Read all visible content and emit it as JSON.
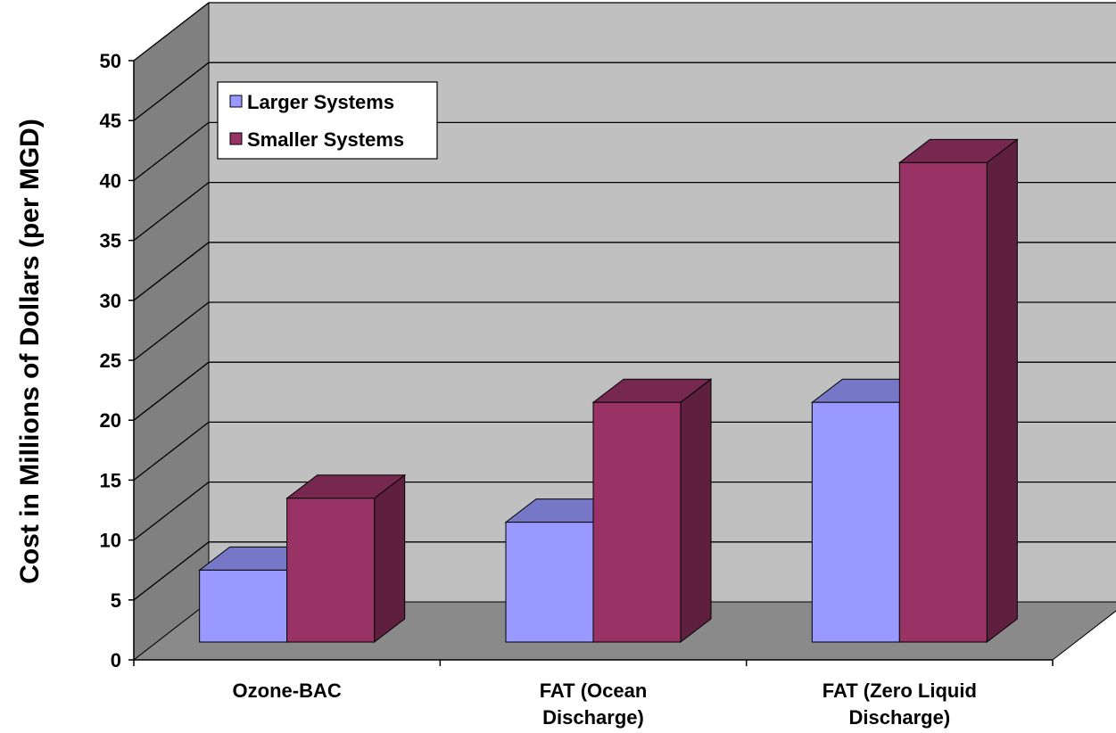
{
  "chart_data": {
    "type": "bar",
    "style": "3d-clustered-column",
    "title": "",
    "xlabel": "",
    "ylabel": "Cost in Millions of Dollars (per MGD)",
    "ylim": [
      0,
      50
    ],
    "yticks": [
      0,
      5,
      10,
      15,
      20,
      25,
      30,
      35,
      40,
      45,
      50
    ],
    "grid": true,
    "legend_position": "top-left",
    "categories": [
      [
        "Ozone-BAC"
      ],
      [
        "FAT (Ocean",
        "Discharge)"
      ],
      [
        "FAT (Zero Liquid",
        "Discharge)"
      ]
    ],
    "series": [
      {
        "name": "Larger Systems",
        "values": [
          6,
          10,
          20
        ],
        "color": "#9999ff"
      },
      {
        "name": "Smaller Systems",
        "values": [
          12,
          20,
          40
        ],
        "color": "#993366"
      }
    ],
    "colors": {
      "wall": "#c0c0c0",
      "side_wall": "#808080",
      "floor": "#8a8a8a",
      "gridline": "#000000"
    }
  }
}
